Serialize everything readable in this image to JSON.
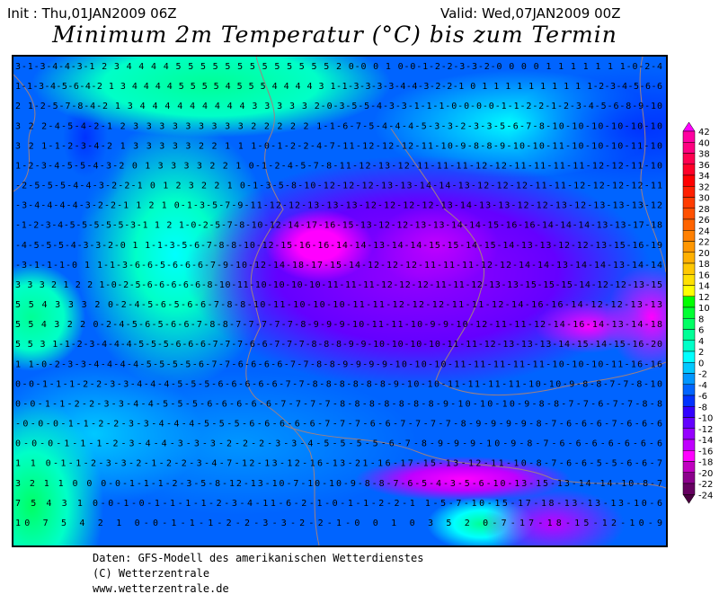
{
  "header": {
    "init": "Init : Thu,01JAN2009 06Z",
    "valid": "Valid: Wed,07JAN2009 00Z",
    "title": "Minimum 2m Temperatur (°C) bis zum Termin"
  },
  "map": {
    "value_rows": [
      "3-1-3-4-4-3-1 2 3 4 4 4 4 5 5 5 5 5 5 5 5 5 5 5 5 5 2 0-0 0 1 0-0-1-2-2-3-3-2-0 0 0 0 1 1 1 1 1 1 1-0-2-4",
      "1-1-3-4-5-6-4-2 1 3 4 4 4 4 5 5 5 5 4 5 5 5 4 4 4 4 3 1-1-3-3-3-3-4-4-3-2-2-1 0 1 1 1 1 1 1 1 1 1 1-2-3-4-5-6-6",
      "2 1-2-5-7-8-4-2 1 3 4 4 4 4 4 4 4 4 4 3 3 3 3 3 2-0-3-5-5-4-3-3-1-1-1-0-0-0-0-1-1-2-2-1-2-3-4-5-6-8-9-10",
      "3 2 2-4-5-4-2-1 2 3 3 3 3 3 3 3 3 3 2 2 2 2 2 1-1-6-7-5-4-4-4-5-3-3-2-3-3-5-6-7-8-10-10-10-10-10-10",
      "3 2 1-1-2-3-4-2 1 3 3 3 3 3 2 2 1 1 1-0-1-2-2-4-7-11-12-12-12-11-10-9-8-8-9-10-10-11-10-10-10-11-10",
      "1-2-3-4-5-5-4-3-2 0 1 3 3 3 3 2 2 1 0-1-2-4-5-7-8-11-12-13-12-11-11-11-12-12-11-11-11-11-12-12-11-10",
      "-2-5-5-5-4-4-3-2-2-1 0 1 2 3 2 2 1 0-1-3-5-8-10-12-12-12-13-13-14-14-13-12-12-12-11-11-12-12-12-12-11",
      "-3-4-4-4-4-3-2-2-1 1 2 1 0-1-3-5-7-9-11-12-12-13-13-13-12-12-12-12-13-14-13-13-12-12-13-12-13-13-13-12",
      "-1-2-3-4-5-5-5-5-5-3-1 1 2 1-0-2-5-7-8-10-12-14-17-16-15-13-12-12-13-13-14-14-15-16-16-14-14-14-13-13-17-18",
      "-4-5-5-5-4-3-3-2-0 1 1-1-3-5-6-7-8-8-10-12-15-16-16-14-14-13-14-14-15-15-14-15-14-13-13-12-12-13-15-16-19",
      "-3-1-1-1-0 1 1-1-3-6-6-5-6-6-6-7-9-10-12-14-18-17-15-14-12-12-12-11-11-11-12-12-14-14-13-14-14-13-14-14",
      "3 3 3 2 1 2 2 1-0-2-5-6-6-6-6-6-8-10-11-10-10-10-10-11-11-11-12-12-12-11-11-12-13-13-15-15-15-14-12-12-13-15",
      "5 5 4 3 3 3 2 0-2-4-5-6-5-6-6-7-8-8-10-11-10-10-10-11-11-12-12-12-11-11-12-14-16-16-14-12-12-13-13",
      "5 5 4 3 2 2 0-2-4-5-6-5-6-6-7-8-8-7-7-7-7-7-8-9-9-9-10-11-11-10-9-9-10-12-11-11-12-14-16-14-13-14-18",
      "5 5 3 1-1-2-3-4-4-4-5-5-5-6-6-6-7-7-7-6-6-7-7-7-8-8-8-9-9-10-10-10-10-11-11-12-13-13-13-14-15-14-15-16-20",
      "1 1-0-2-3-3-4-4-4-4-5-5-5-5-6-7-7-6-6-6-6-7-7-8-8-9-9-9-9-10-10-10-11-11-11-11-11-10-10-10-11-16-16",
      "0-0-1-1-1-2-2-3-3-4-4-4-5-5-5-6-6-6-6-6-7-7-8-8-8-8-8-8-9-10-10-11-11-11-11-10-10-9-8-8-7-7-8-10",
      "0-0-1-1-2-2-3-3-4-4-5-5-5-6-6-6-6-6-7-7-7-7-8-8-8-8-8-8-8-9-10-10-10-9-8-8-7-7-6-7-7-8-8",
      "-0-0-0-1-1-2-2-3-3-4-4-4-5-5-5-6-6-6-6-6-7-7-7-6-6-7-7-7-7-8-9-9-9-9-8-7-6-6-6-7-6-6-6",
      "0-0-0-1-1-1-2-3-4-4-3-3-3-2-2-2-3-3-4-5-5-5-5-6-7-8-9-9-9-10-9-8-7-6-6-6-6-6-6-6",
      "1 1 0-1-1-2-3-3-2-1-2-2-3-4-7-12-13-12-16-13-21-16-17-15-13-12-11-10-8-7-6-6-5-5-6-6-7",
      "3 2 1 1 0 0 0-0-1-1-1-2-3-5-8-12-13-10-7-10-10-9-8-8-7-6-5-4-3-5-6-10-13-15-13-14-14-10-8-7",
      "7 5 4 3 1 0-0-1-0-1-1-1-1-2-3-4-11-6-2-1-0-1-1-2-2-1 1-5-7-10-15-17-18-13-13-13-10-6",
      "10 7 5 4 2 1 0-0-1-1-1-2-2-3-3-2-2-1-0 0 1 0 3 5 2 0-7-17-18-15-12-10-9"
    ]
  },
  "colorbar": {
    "labels": [
      "42",
      "40",
      "38",
      "36",
      "34",
      "32",
      "30",
      "28",
      "26",
      "24",
      "22",
      "20",
      "18",
      "16",
      "14",
      "12",
      "10",
      "8",
      "6",
      "4",
      "2",
      "0",
      "-2",
      "-4",
      "-6",
      "-8",
      "-10",
      "-12",
      "-14",
      "-16",
      "-18",
      "-20",
      "-22",
      "-24"
    ],
    "colors_top_to_bottom": [
      "#ff00ff",
      "#ff00a0",
      "#ff0080",
      "#ff0050",
      "#ff0028",
      "#ff0000",
      "#ff2000",
      "#ff3c00",
      "#ff5000",
      "#ff6400",
      "#ff8000",
      "#ff9600",
      "#ffb000",
      "#ffc800",
      "#ffe000",
      "#ffff00",
      "#00ff00",
      "#00ff32",
      "#00ff64",
      "#00ff96",
      "#00ffc8",
      "#00ffff",
      "#00c8ff",
      "#0096ff",
      "#0064ff",
      "#0032ff",
      "#3200ff",
      "#6400ff",
      "#9600ff",
      "#c000ff",
      "#ff00ff",
      "#c000c0",
      "#8c008c",
      "#660060",
      "#4a0040"
    ]
  },
  "footer": {
    "line1": "Daten: GFS-Modell des amerikanischen Wetterdienstes",
    "line2": "(C) Wetterzentrale",
    "line3": "www.wetterzentrale.de"
  }
}
